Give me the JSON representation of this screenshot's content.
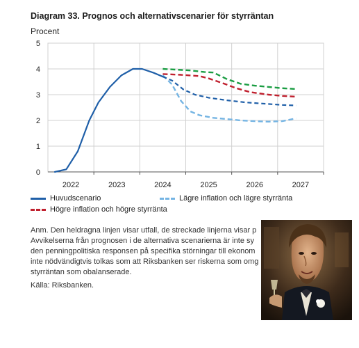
{
  "header": {
    "title": "Diagram 33. Prognos och alternativscenarier för styrräntan",
    "unit": "Procent"
  },
  "chart_data": {
    "type": "line",
    "xlim": [
      2021.5,
      2027.5
    ],
    "ylim": [
      0,
      5
    ],
    "yticks": [
      0,
      1,
      2,
      3,
      4,
      5
    ],
    "xticks": [
      2022,
      2023,
      2024,
      2025,
      2026,
      2027
    ],
    "grid": true,
    "legend_position": "bottom",
    "series": [
      {
        "name": "Huvudscenario",
        "color": "#1f5fa8",
        "style": "solid",
        "x": [
          2021.65,
          2021.9,
          2022.15,
          2022.4,
          2022.6,
          2022.85,
          2023.1,
          2023.35,
          2023.55,
          2023.8,
          2024.0,
          2024.2,
          2024.45,
          2024.7,
          2025.0,
          2025.4,
          2025.8,
          2026.2,
          2026.6,
          2026.9
        ],
        "values": [
          0.0,
          0.1,
          0.8,
          2.0,
          2.7,
          3.3,
          3.75,
          4.0,
          4.0,
          3.85,
          3.7,
          3.55,
          3.2,
          3.0,
          2.88,
          2.78,
          2.7,
          2.65,
          2.6,
          2.58
        ],
        "dash_from_x": 2023.95
      },
      {
        "name": "Lägre inflation och lägre styrränta",
        "color": "#74b4e3",
        "style": "dashed",
        "x": [
          2024.0,
          2024.2,
          2024.4,
          2024.6,
          2024.8,
          2025.1,
          2025.4,
          2025.7,
          2026.0,
          2026.3,
          2026.6,
          2026.9
        ],
        "values": [
          3.75,
          3.4,
          2.75,
          2.35,
          2.2,
          2.1,
          2.05,
          2.0,
          1.97,
          1.95,
          1.97,
          2.08
        ]
      },
      {
        "name": "Högre inflation och högre styrränta",
        "color": "#c0202e",
        "style": "dashed",
        "x": [
          2024.0,
          2024.4,
          2024.8,
          2025.0,
          2025.3,
          2025.6,
          2025.9,
          2026.3,
          2026.6,
          2026.9
        ],
        "values": [
          3.8,
          3.77,
          3.72,
          3.63,
          3.45,
          3.25,
          3.1,
          3.0,
          2.95,
          2.92
        ]
      },
      {
        "name": "",
        "color": "#1b9d43",
        "style": "dashed",
        "x": [
          2024.0,
          2024.3,
          2024.6,
          2024.9,
          2025.1,
          2025.4,
          2025.7,
          2026.0,
          2026.3,
          2026.6,
          2026.9
        ],
        "values": [
          4.0,
          3.97,
          3.94,
          3.88,
          3.86,
          3.6,
          3.42,
          3.35,
          3.3,
          3.25,
          3.22
        ]
      }
    ]
  },
  "legend": {
    "items": [
      {
        "label": "Huvudscenario",
        "color": "#1f5fa8",
        "style": "solid"
      },
      {
        "label": "Lägre inflation och lägre styrränta",
        "color": "#74b4e3",
        "style": "dashed"
      },
      {
        "label": "Högre inflation och högre styrränta",
        "color": "#c0202e",
        "style": "dashed"
      }
    ]
  },
  "notes": {
    "lines": [
      "Anm. Den heldragna linjen visar utfall, de streckade linjerna visar p",
      "Avvikelserna från prognosen i de alternativa scenarierna är inte sy",
      "den penningpolitiska responsen på specifika störningar till ekonom",
      "inte nödvändigtvis tolkas som att Riksbanken ser riskerna som omg",
      "styrräntan som obalanserade."
    ],
    "source": "Källa: Riksbanken."
  },
  "overlay": {
    "description": "photo"
  }
}
